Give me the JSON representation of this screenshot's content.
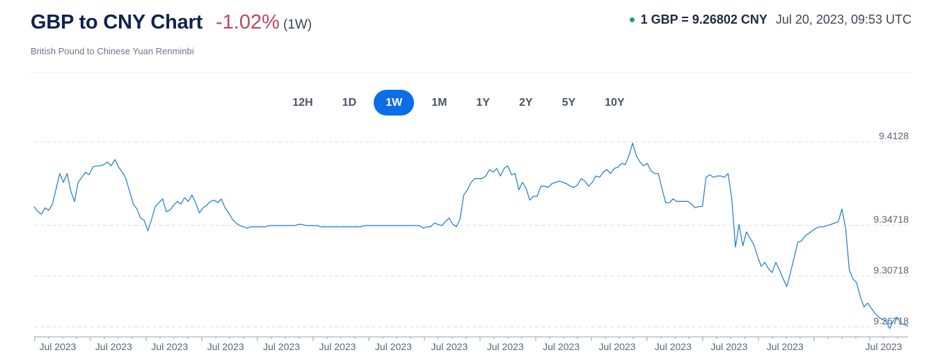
{
  "header": {
    "title": "GBP to CNY Chart",
    "change": "-1.02%",
    "period": "(1W)",
    "subtitle": "British Pound to Chinese Yuan Renminbi",
    "rate": "1 GBP = 9.26802 CNY",
    "timestamp": "Jul 20, 2023, 09:53 UTC"
  },
  "tabs": [
    {
      "label": "12H"
    },
    {
      "label": "1D"
    },
    {
      "label": "1W",
      "active": true
    },
    {
      "label": "1M"
    },
    {
      "label": "1Y"
    },
    {
      "label": "2Y"
    },
    {
      "label": "5Y"
    },
    {
      "label": "10Y"
    }
  ],
  "colors": {
    "line": "#1a78d6",
    "accent": "#0b6ee8",
    "negative_change": "#c0465f",
    "live_dot": "#1aa55a"
  },
  "chart_data": {
    "type": "line",
    "title": "GBP to CNY Chart",
    "xlabel": "",
    "ylabel": "",
    "ylim": [
      9.2605,
      9.4128
    ],
    "y_ticks": [
      "9.4128",
      "9.34718",
      "9.30718",
      "9.26718"
    ],
    "y_tick_values": [
      9.4128,
      9.34718,
      9.30718,
      9.26718
    ],
    "x_tick_labels": [
      "Jul 2023",
      "Jul 2023",
      "Jul 2023",
      "Jul 2023",
      "Jul 2023",
      "Jul 2023",
      "Jul 2023",
      "Jul 2023",
      "Jul 2023",
      "Jul 2023",
      "Jul 2023",
      "Jul 2023",
      "Jul 2023",
      "Jul 2023",
      "Jul 2023"
    ],
    "grid": "horizontal-dashed",
    "series": [
      {
        "values": [
          9.362,
          9.358,
          9.356,
          9.361,
          9.359,
          9.364,
          9.376,
          9.388,
          9.381,
          9.388,
          9.374,
          9.366,
          9.381,
          9.385,
          9.389,
          9.387,
          9.393,
          9.394,
          9.394,
          9.395,
          9.397,
          9.394,
          9.399,
          9.393,
          9.389,
          9.384,
          9.374,
          9.364,
          9.36,
          9.353,
          9.351,
          9.343,
          9.352,
          9.362,
          9.365,
          9.368,
          9.358,
          9.359,
          9.363,
          9.366,
          9.364,
          9.369,
          9.366,
          9.371,
          9.365,
          9.357,
          9.361,
          9.363,
          9.366,
          9.367,
          9.365,
          9.368,
          9.361,
          9.357,
          9.352,
          9.349,
          9.347,
          9.346,
          9.345,
          9.346,
          9.346,
          9.346,
          9.346,
          9.346,
          9.347,
          9.347,
          9.347,
          9.347,
          9.347,
          9.347,
          9.347,
          9.347,
          9.348,
          9.348,
          9.347,
          9.347,
          9.347,
          9.347,
          9.346,
          9.346,
          9.346,
          9.346,
          9.346,
          9.346,
          9.346,
          9.346,
          9.346,
          9.346,
          9.346,
          9.346,
          9.347,
          9.347,
          9.347,
          9.347,
          9.347,
          9.347,
          9.347,
          9.347,
          9.347,
          9.347,
          9.347,
          9.347,
          9.347,
          9.347,
          9.347,
          9.347,
          9.345,
          9.346,
          9.346,
          9.349,
          9.348,
          9.347,
          9.35,
          9.353,
          9.348,
          9.346,
          9.352,
          9.371,
          9.375,
          9.381,
          9.384,
          9.384,
          9.384,
          9.386,
          9.391,
          9.389,
          9.392,
          9.386,
          9.392,
          9.394,
          9.387,
          9.388,
          9.375,
          9.381,
          9.376,
          9.367,
          9.37,
          9.37,
          9.378,
          9.378,
          9.377,
          9.38,
          9.381,
          9.382,
          9.381,
          9.38,
          9.378,
          9.377,
          9.379,
          9.384,
          9.382,
          9.378,
          9.381,
          9.386,
          9.385,
          9.389,
          9.391,
          9.388,
          9.392,
          9.393,
          9.396,
          9.395,
          9.402,
          9.412,
          9.402,
          9.397,
          9.394,
          9.396,
          9.39,
          9.388,
          9.388,
          9.376,
          9.365,
          9.365,
          9.368,
          9.366,
          9.366,
          9.366,
          9.366,
          9.364,
          9.361,
          9.362,
          9.362,
          9.385,
          9.387,
          9.385,
          9.386,
          9.386,
          9.385,
          9.388,
          9.368,
          9.33,
          9.348,
          9.331,
          9.342,
          9.337,
          9.332,
          9.323,
          9.315,
          9.318,
          9.313,
          9.31,
          9.318,
          9.312,
          9.305,
          9.299,
          9.31,
          9.322,
          9.334,
          9.335,
          9.339,
          9.341,
          9.343,
          9.345,
          9.346,
          9.346,
          9.347,
          9.348,
          9.349,
          9.35,
          9.36,
          9.345,
          9.312,
          9.305,
          9.302,
          9.291,
          9.283,
          9.286,
          9.282,
          9.278,
          9.275,
          9.273,
          9.272,
          9.266,
          9.272,
          9.275,
          9.27,
          9.269,
          9.268
        ]
      }
    ]
  }
}
